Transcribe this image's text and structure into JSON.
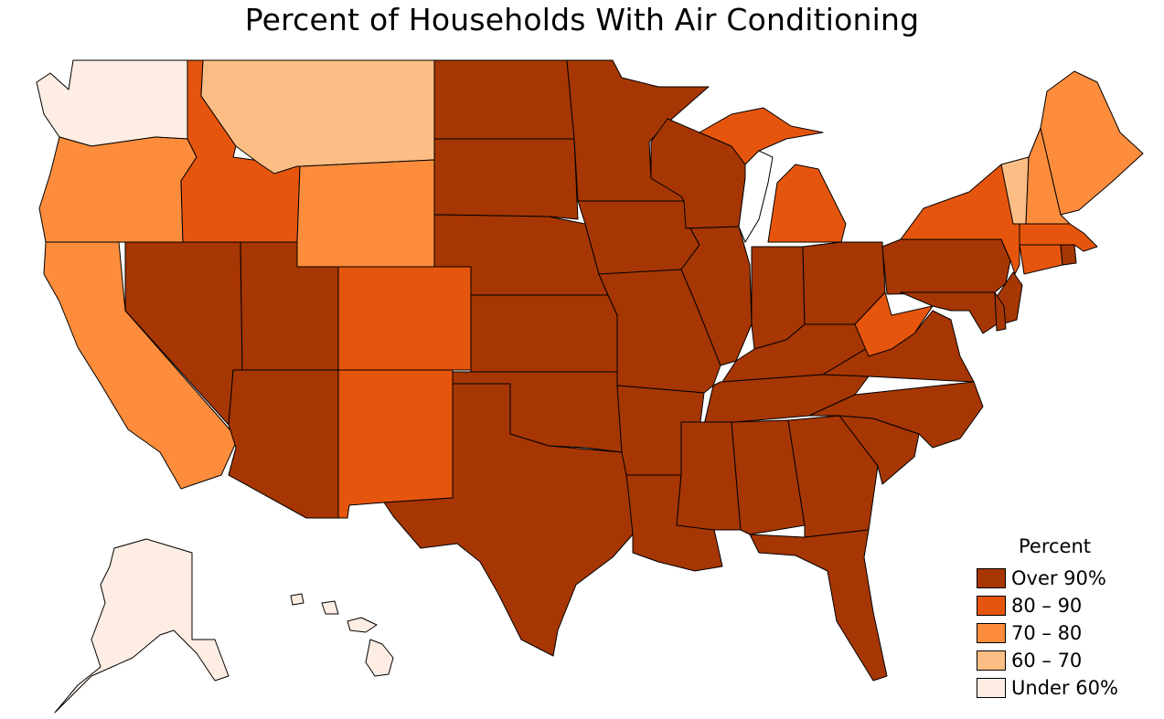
{
  "title": "Percent of Households With Air Conditioning",
  "legend": {
    "title": "Percent",
    "items": [
      {
        "label": "Over 90%",
        "color": "#a63603"
      },
      {
        "label": "80 – 90",
        "color": "#e6550d"
      },
      {
        "label": "70 – 80",
        "color": "#fd8d3c"
      },
      {
        "label": "60 – 70",
        "color": "#fdbe85"
      },
      {
        "label": "Under 60%",
        "color": "#feede2"
      }
    ]
  },
  "colors": {
    "over90": "#a63603",
    "c80_90": "#e6550d",
    "c70_80": "#fd8d3c",
    "c60_70": "#fdbe85",
    "under60": "#feede2"
  },
  "regions": [
    {
      "name": "Washington",
      "class": "under60"
    },
    {
      "name": "Oregon",
      "class": "c70_80"
    },
    {
      "name": "California",
      "class": "c70_80"
    },
    {
      "name": "Idaho",
      "class": "c80_90"
    },
    {
      "name": "Nevada",
      "class": "over90"
    },
    {
      "name": "Montana",
      "class": "c60_70"
    },
    {
      "name": "Wyoming",
      "class": "c70_80"
    },
    {
      "name": "Utah",
      "class": "over90"
    },
    {
      "name": "Arizona",
      "class": "over90"
    },
    {
      "name": "Colorado",
      "class": "c80_90"
    },
    {
      "name": "New Mexico",
      "class": "c80_90"
    },
    {
      "name": "North Dakota",
      "class": "over90"
    },
    {
      "name": "South Dakota",
      "class": "over90"
    },
    {
      "name": "Nebraska",
      "class": "over90"
    },
    {
      "name": "Kansas",
      "class": "over90"
    },
    {
      "name": "Oklahoma",
      "class": "over90"
    },
    {
      "name": "Texas",
      "class": "over90"
    },
    {
      "name": "Minnesota",
      "class": "over90"
    },
    {
      "name": "Iowa",
      "class": "over90"
    },
    {
      "name": "Missouri",
      "class": "over90"
    },
    {
      "name": "Arkansas",
      "class": "over90"
    },
    {
      "name": "Louisiana",
      "class": "over90"
    },
    {
      "name": "Wisconsin",
      "class": "over90"
    },
    {
      "name": "Illinois",
      "class": "over90"
    },
    {
      "name": "Michigan",
      "class": "c80_90"
    },
    {
      "name": "Indiana",
      "class": "over90"
    },
    {
      "name": "Ohio",
      "class": "over90"
    },
    {
      "name": "Kentucky",
      "class": "over90"
    },
    {
      "name": "Tennessee",
      "class": "over90"
    },
    {
      "name": "Mississippi",
      "class": "over90"
    },
    {
      "name": "Alabama",
      "class": "over90"
    },
    {
      "name": "Georgia",
      "class": "over90"
    },
    {
      "name": "Florida",
      "class": "over90"
    },
    {
      "name": "South Carolina",
      "class": "over90"
    },
    {
      "name": "North Carolina",
      "class": "over90"
    },
    {
      "name": "Virginia",
      "class": "over90"
    },
    {
      "name": "West Virginia",
      "class": "c80_90"
    },
    {
      "name": "Pennsylvania",
      "class": "over90"
    },
    {
      "name": "New York",
      "class": "c80_90"
    },
    {
      "name": "New Jersey",
      "class": "over90"
    },
    {
      "name": "Maryland",
      "class": "over90"
    },
    {
      "name": "Delaware",
      "class": "over90"
    },
    {
      "name": "Connecticut",
      "class": "c80_90"
    },
    {
      "name": "Rhode Island",
      "class": "over90"
    },
    {
      "name": "Massachusetts",
      "class": "c80_90"
    },
    {
      "name": "Vermont",
      "class": "c60_70"
    },
    {
      "name": "New Hampshire",
      "class": "c70_80"
    },
    {
      "name": "Maine",
      "class": "c70_80"
    },
    {
      "name": "Alaska",
      "class": "under60"
    },
    {
      "name": "Hawaii",
      "class": "under60"
    }
  ]
}
